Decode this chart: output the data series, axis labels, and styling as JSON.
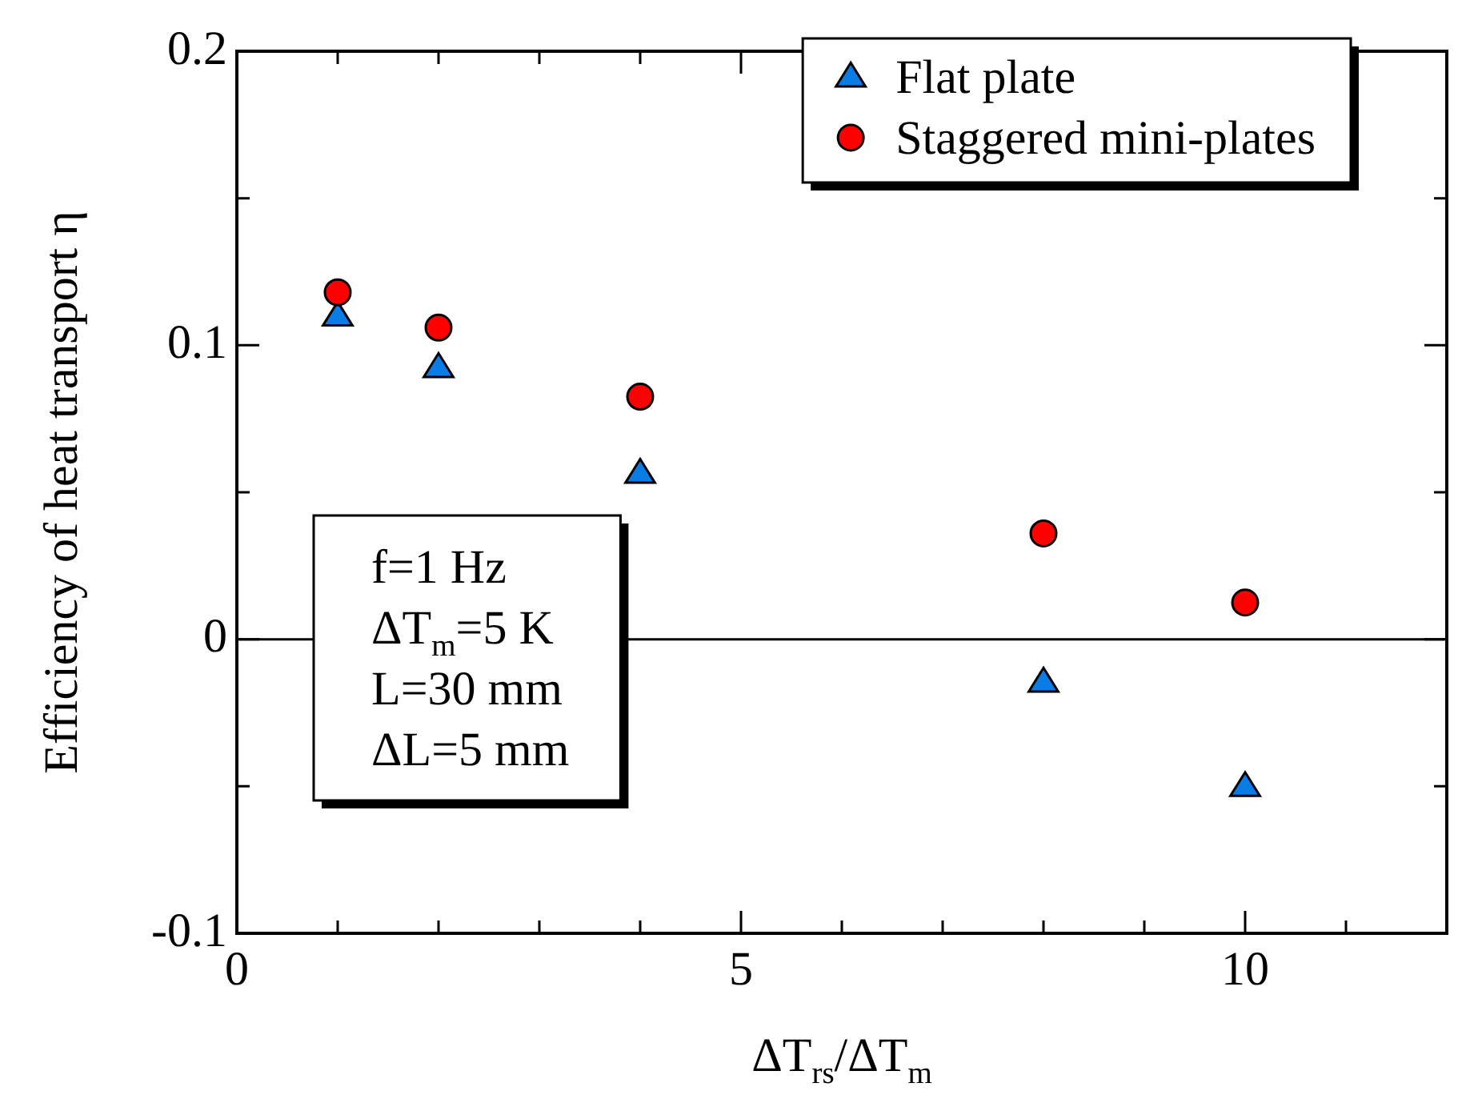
{
  "chart_data": {
    "type": "scatter",
    "xlabel": "ΔT$_{rs}$/ΔT$_{m}$",
    "ylabel": "Efficiency of heat transport η",
    "xlim": [
      0,
      12
    ],
    "xticks": [
      0,
      {
        "value": 1,
        "label": null
      },
      {
        "value": 2,
        "label": null
      },
      {
        "value": 3,
        "label": null
      },
      {
        "value": 4,
        "label": null
      },
      5,
      {
        "value": 6,
        "label": null
      },
      {
        "value": 7,
        "label": null
      },
      {
        "value": 8,
        "label": null
      },
      {
        "value": 9,
        "label": null
      },
      10,
      {
        "value": 11,
        "label": null
      }
    ],
    "ylim": [
      -0.1,
      0.2
    ],
    "yticks": [
      -0.1,
      {
        "value": -0.05,
        "label": null
      },
      0,
      {
        "value": 0.05,
        "label": null
      },
      0.1,
      {
        "value": 0.15,
        "label": null
      },
      0.2
    ],
    "x": [
      1,
      2,
      4,
      8,
      10
    ],
    "series": [
      {
        "name": "Flat plate",
        "color": "#0a7ce6",
        "marker": "triangle",
        "values": [
          0.11,
          0.0925,
          0.0565,
          -0.0145,
          -0.05
        ]
      },
      {
        "name": "Staggered mini-plates",
        "color": "#ff0000",
        "marker": "circle",
        "values": [
          0.118,
          0.106,
          0.0825,
          0.036,
          0.0125
        ]
      }
    ],
    "ref_lines": [
      {
        "axis": "y",
        "value": 0,
        "color": "#000000"
      }
    ],
    "annotations": [
      "f=1 Hz",
      "ΔT$_{m}$=5 K",
      "L=30 mm",
      "ΔL=5 mm"
    ],
    "legend": "top right",
    "grid": false
  }
}
